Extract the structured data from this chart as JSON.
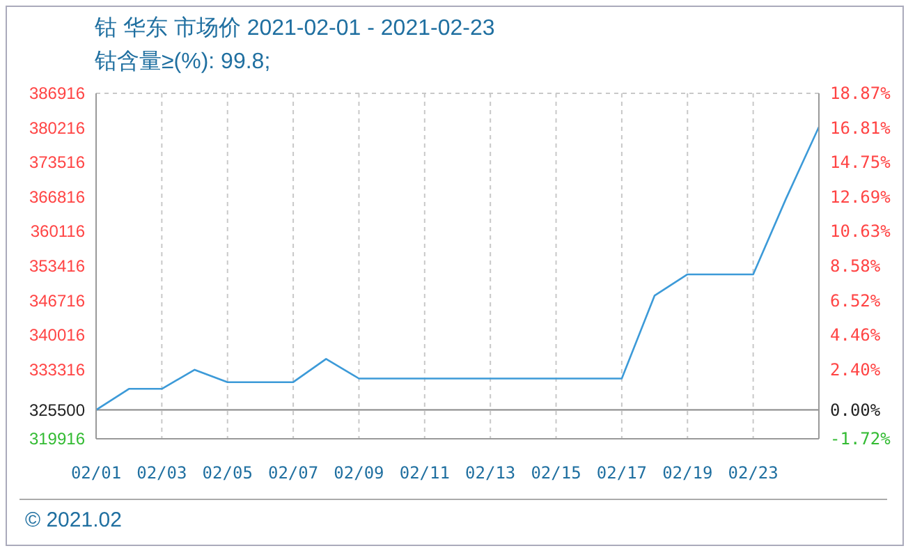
{
  "chart_data": {
    "type": "line",
    "title": "钴 华东 市场价 2021-02-01 - 2021-02-23",
    "subtitle": "钴含量≥(%): 99.8;",
    "categories": [
      "02/01",
      null,
      "02/03",
      null,
      "02/05",
      null,
      "02/07",
      null,
      "02/09",
      null,
      "02/11",
      null,
      "02/13",
      null,
      "02/15",
      null,
      "02/17",
      null,
      "02/19",
      null,
      "02/23",
      null,
      null
    ],
    "series": [
      {
        "color": "#3c9ad8",
        "values": [
          325500,
          329600,
          329600,
          333300,
          330900,
          330900,
          330900,
          335400,
          331600,
          331600,
          331600,
          331600,
          331600,
          331600,
          331600,
          331600,
          331600,
          347700,
          351800,
          351800,
          351800,
          366500,
          380400
        ]
      }
    ],
    "ylim": [
      319916,
      386916
    ],
    "yticks": [
      319916,
      325500,
      333316,
      340016,
      346716,
      353416,
      360116,
      366816,
      373516,
      380216,
      386916
    ],
    "y2lim": [
      -1.72,
      18.87
    ],
    "y2ticks": [
      {
        "value": -1.72,
        "label": "-1.72%"
      },
      {
        "value": 0,
        "label": "0.00%"
      },
      {
        "value": 2.4,
        "label": "2.40%"
      },
      {
        "value": 4.46,
        "label": "4.46%"
      },
      {
        "value": 6.52,
        "label": "6.52%"
      },
      {
        "value": 8.58,
        "label": "8.58%"
      },
      {
        "value": 10.63,
        "label": "10.63%"
      },
      {
        "value": 12.69,
        "label": "12.69%"
      },
      {
        "value": 14.75,
        "label": "14.75%"
      },
      {
        "value": 16.81,
        "label": "16.81%"
      },
      {
        "value": 18.87,
        "label": "18.87%"
      }
    ],
    "ref_lines": [
      {
        "axis": "y2",
        "value": 0,
        "color": "#888888"
      }
    ],
    "grid": true,
    "marker": "none",
    "line_style": "solid",
    "annotations": [
      "© 2021.02"
    ]
  }
}
